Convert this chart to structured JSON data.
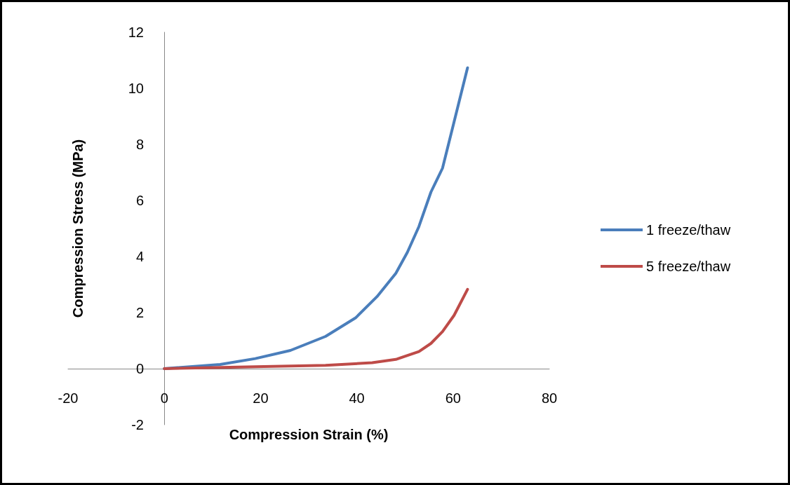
{
  "chart_data": {
    "type": "line",
    "xlabel": "Compression Strain (%)",
    "ylabel": "Compression Stress (MPa)",
    "xlim": [
      -20,
      80
    ],
    "xticks": [
      -20,
      0,
      20,
      40,
      60,
      80
    ],
    "ylim": [
      -2,
      12
    ],
    "yticks": [
      -2,
      0,
      2,
      4,
      6,
      8,
      10,
      12
    ],
    "grid": false,
    "legend": "right",
    "marker": "none",
    "line_style": "solid",
    "series": [
      {
        "name": "1 freeze/thaw",
        "color": "#4a7ebb",
        "x": [
          0,
          11.6,
          18.9,
          26.2,
          33.5,
          39.8,
          44.2,
          48.1,
          50.5,
          52.9,
          55.4,
          57.8,
          60.2,
          63
        ],
        "values": [
          0,
          0.15,
          0.36,
          0.65,
          1.15,
          1.82,
          2.57,
          3.4,
          4.15,
          5.07,
          6.3,
          7.15,
          8.8,
          10.73
        ]
      },
      {
        "name": "5 freeze/thaw",
        "color": "#be4b48",
        "x": [
          0,
          18.9,
          33.5,
          43.2,
          48.1,
          52.9,
          55.4,
          57.8,
          60.2,
          63
        ],
        "values": [
          0,
          0.07,
          0.12,
          0.21,
          0.33,
          0.61,
          0.9,
          1.32,
          1.9,
          2.83
        ]
      }
    ]
  }
}
